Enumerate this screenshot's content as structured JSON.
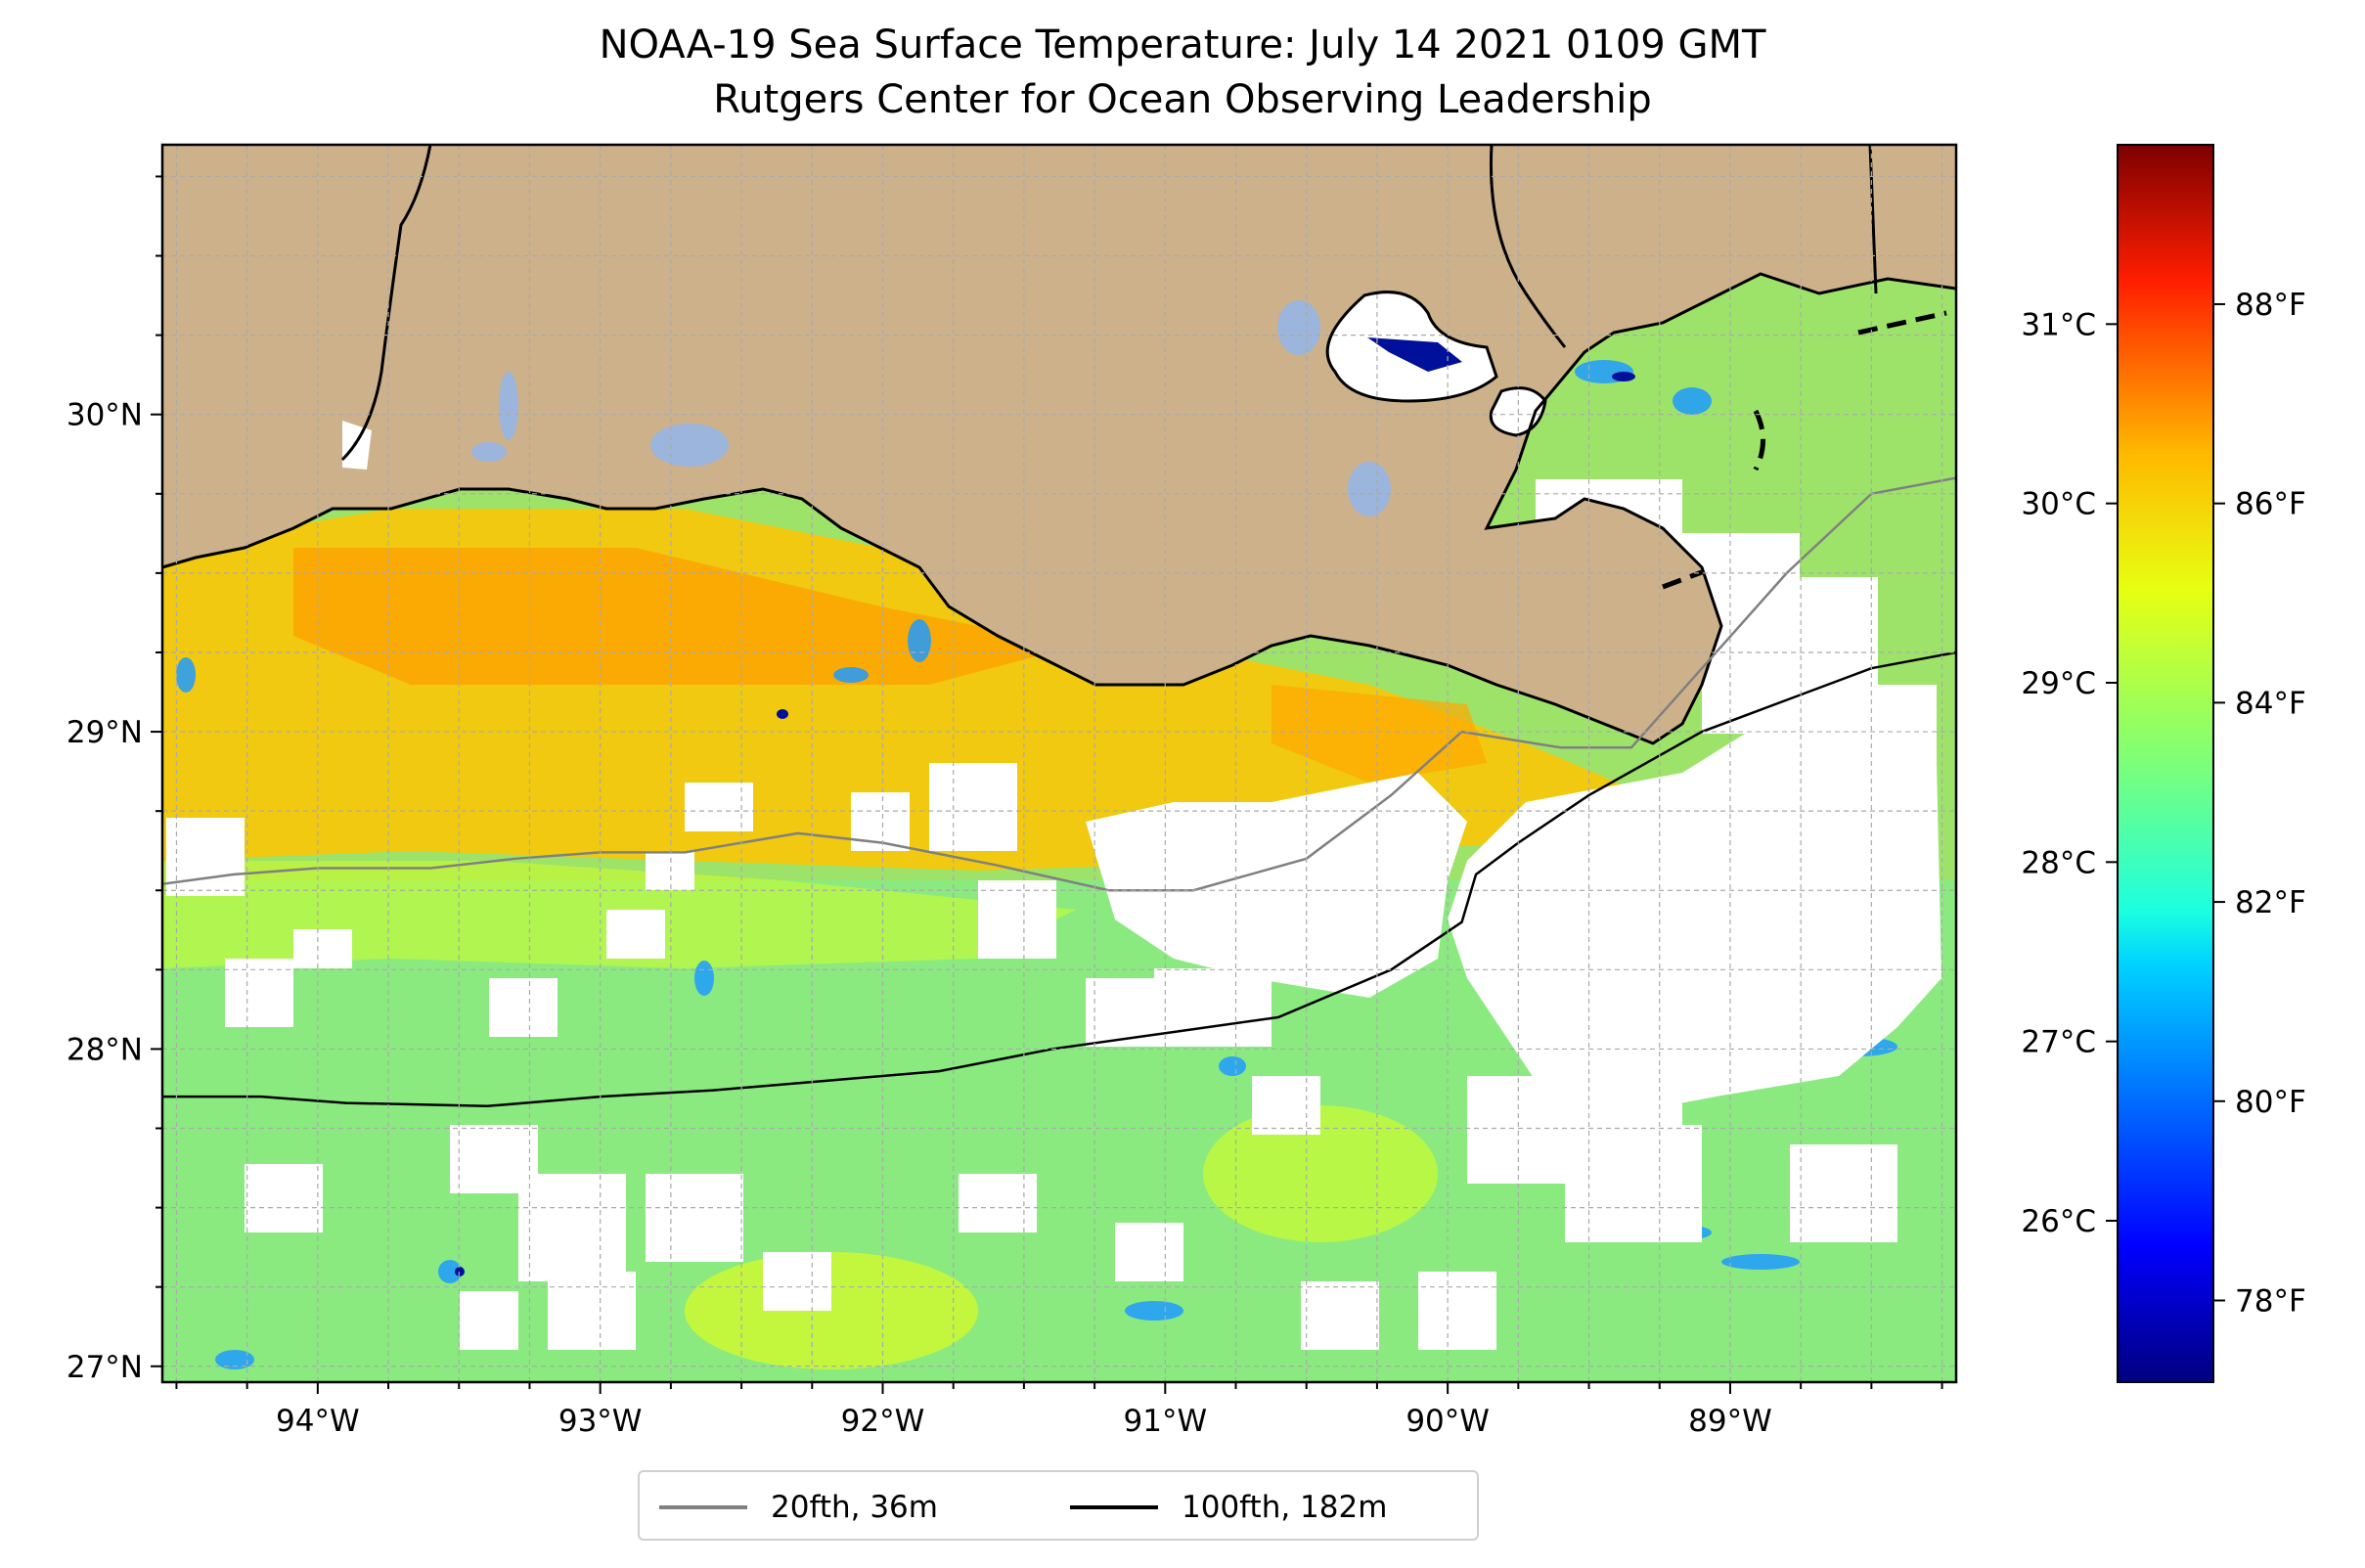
{
  "title": {
    "line1": "NOAA-19 Sea Surface Temperature: July 14 2021 0109 GMT",
    "line2": "Rutgers Center for Ocean Observing Leadership"
  },
  "map": {
    "lon_range": [
      -94.55,
      -88.2
    ],
    "lat_range": [
      26.95,
      30.85
    ],
    "x_ticks": [
      {
        "value": -94,
        "label": "94°W"
      },
      {
        "value": -93,
        "label": "93°W"
      },
      {
        "value": -92,
        "label": "92°W"
      },
      {
        "value": -91,
        "label": "91°W"
      },
      {
        "value": -90,
        "label": "90°W"
      },
      {
        "value": -89,
        "label": "89°W"
      }
    ],
    "y_ticks": [
      {
        "value": 27,
        "label": "27°N"
      },
      {
        "value": 28,
        "label": "28°N"
      },
      {
        "value": 29,
        "label": "29°N"
      },
      {
        "value": 30,
        "label": "30°N"
      }
    ],
    "grid": true,
    "colors": {
      "land": "#cdb18a",
      "inland_water": "#9bb5dc",
      "cloud_mask": "#ffffff",
      "coastline": "#000000",
      "isobath_20fth": "#808080",
      "isobath_100fth": "#000000"
    }
  },
  "colorbar": {
    "colormap": "jet",
    "range_c": [
      25.1,
      32.0
    ],
    "celsius_ticks": [
      {
        "value": 26,
        "label": "26°C"
      },
      {
        "value": 27,
        "label": "27°C"
      },
      {
        "value": 28,
        "label": "28°C"
      },
      {
        "value": 29,
        "label": "29°C"
      },
      {
        "value": 30,
        "label": "30°C"
      },
      {
        "value": 31,
        "label": "31°C"
      }
    ],
    "fahrenheit_ticks": [
      {
        "value": 78,
        "label": "78°F"
      },
      {
        "value": 80,
        "label": "80°F"
      },
      {
        "value": 82,
        "label": "82°F"
      },
      {
        "value": 84,
        "label": "84°F"
      },
      {
        "value": 86,
        "label": "86°F"
      },
      {
        "value": 88,
        "label": "88°F"
      }
    ]
  },
  "legend": {
    "items": [
      {
        "label": "20fth, 36m",
        "color": "#808080"
      },
      {
        "label": "100fth, 182m",
        "color": "#000000"
      }
    ],
    "placement": "bottom-center"
  }
}
